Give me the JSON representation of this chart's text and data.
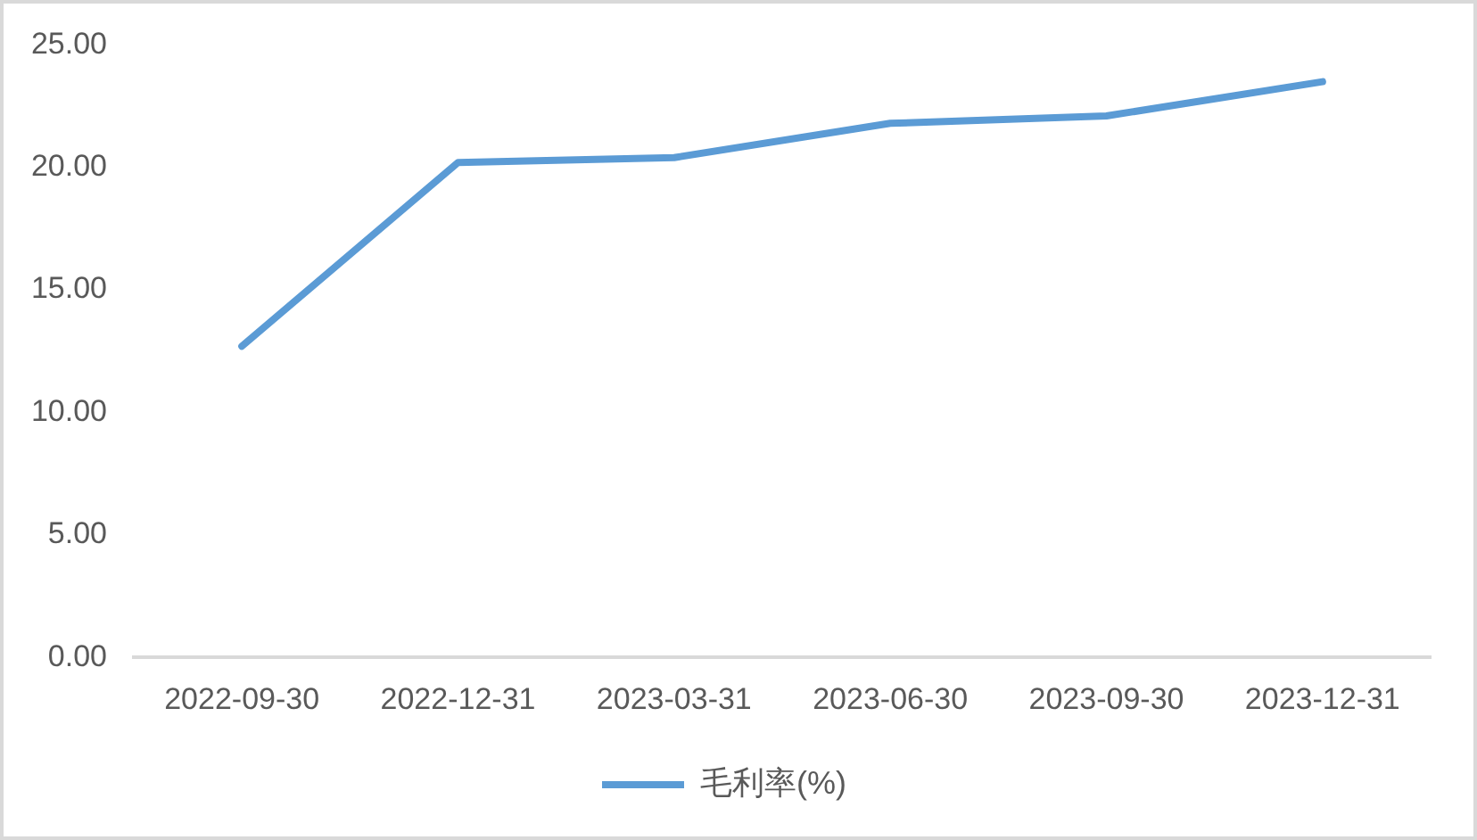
{
  "chart_data": {
    "type": "line",
    "categories": [
      "2022-09-30",
      "2022-12-31",
      "2023-03-31",
      "2023-06-30",
      "2023-09-30",
      "2023-12-31"
    ],
    "series": [
      {
        "name": "毛利率(%)",
        "color": "#5b9bd5",
        "values": [
          12.7,
          20.2,
          20.4,
          21.8,
          22.1,
          23.5
        ]
      }
    ],
    "ylim": [
      0,
      25
    ],
    "yticks": [
      {
        "value": 0,
        "label": "0.00"
      },
      {
        "value": 5,
        "label": "5.00"
      },
      {
        "value": 10,
        "label": "10.00"
      },
      {
        "value": 15,
        "label": "15.00"
      },
      {
        "value": 20,
        "label": "20.00"
      },
      {
        "value": 25,
        "label": "25.00"
      }
    ],
    "grid": false,
    "legend": "bottom",
    "marker": "none",
    "line_style": "solid"
  }
}
